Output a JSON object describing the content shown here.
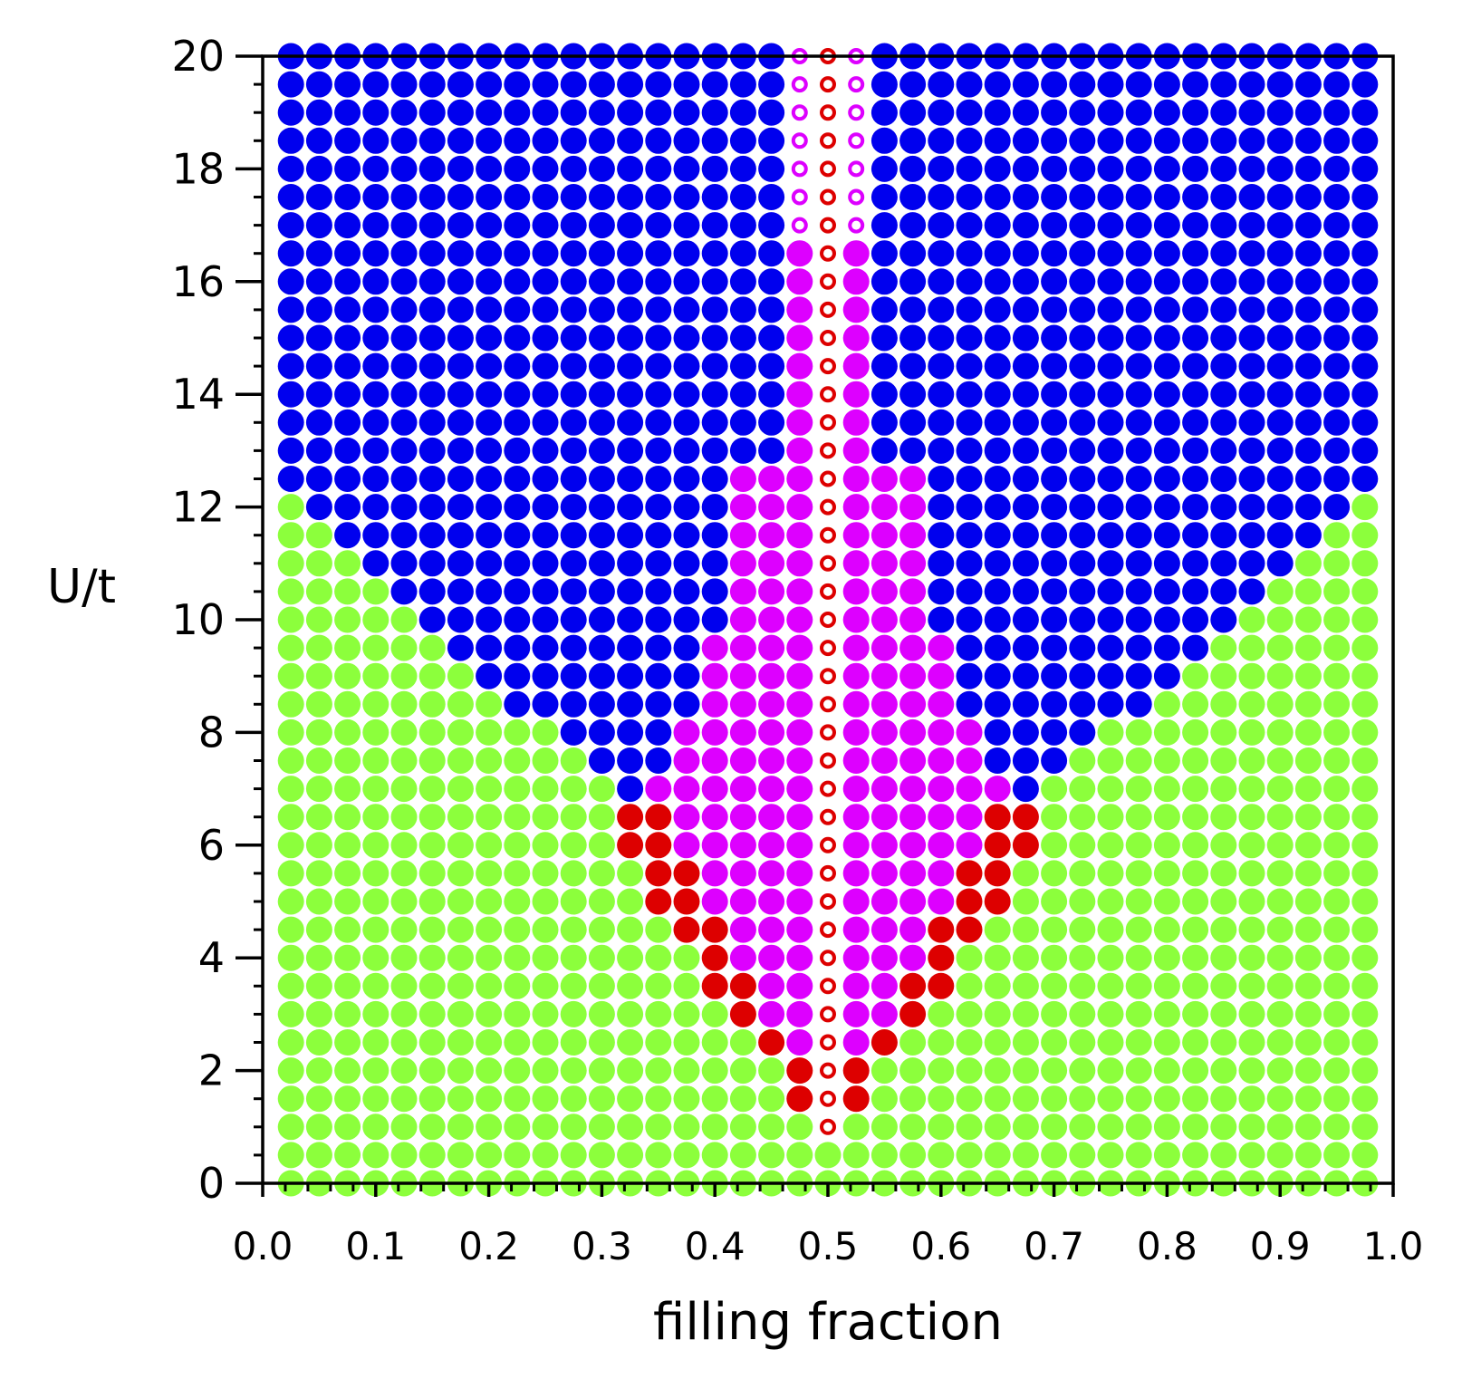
{
  "chart_data": {
    "type": "scatter",
    "title": "",
    "xlabel": "filling fraction",
    "ylabel": "U/t",
    "xlim": [
      0.0,
      1.0
    ],
    "ylim": [
      0,
      20
    ],
    "x_ticks": [
      "0.0",
      "0.1",
      "0.2",
      "0.3",
      "0.4",
      "0.5",
      "0.6",
      "0.7",
      "0.8",
      "0.9",
      "1.0"
    ],
    "y_ticks": [
      "0",
      "2",
      "4",
      "6",
      "8",
      "10",
      "12",
      "14",
      "16",
      "18",
      "20"
    ],
    "grid": false,
    "legend": "none",
    "grid_x": {
      "start": 0.025,
      "step": 0.025,
      "count": 39
    },
    "grid_y": {
      "start": 0,
      "step": 0.5,
      "count": 41
    },
    "colors": {
      "green": "#8cff3c",
      "blue": "#0000ee",
      "magenta": "#dd00ff",
      "red": "#dd0000",
      "open_red": "#dd0000",
      "open_magenta": "#dd00ff"
    },
    "phase_notes": {
      "blue_lower_boundary_U": [
        12.5,
        12,
        11.5,
        11,
        10.5,
        10,
        9.5,
        9,
        8.5,
        8.5,
        8,
        7.5,
        7,
        7
      ],
      "red_filled_points": [
        [
          0.325,
          6.5
        ],
        [
          0.35,
          6.5
        ],
        [
          0.325,
          6
        ],
        [
          0.35,
          6
        ],
        [
          0.35,
          5.5
        ],
        [
          0.375,
          5.5
        ],
        [
          0.35,
          5
        ],
        [
          0.375,
          5
        ],
        [
          0.375,
          4.5
        ],
        [
          0.4,
          4.5
        ],
        [
          0.4,
          4
        ],
        [
          0.4,
          3.5
        ],
        [
          0.425,
          3.5
        ],
        [
          0.425,
          3
        ],
        [
          0.45,
          2.5
        ],
        [
          0.475,
          2
        ],
        [
          0.475,
          1.5
        ],
        [
          0.525,
          2
        ],
        [
          0.525,
          1.5
        ],
        [
          0.55,
          2.5
        ],
        [
          0.575,
          3
        ],
        [
          0.575,
          3.5
        ],
        [
          0.6,
          3.5
        ],
        [
          0.6,
          4
        ],
        [
          0.6,
          4.5
        ],
        [
          0.625,
          4.5
        ],
        [
          0.625,
          5
        ],
        [
          0.65,
          5
        ],
        [
          0.625,
          5.5
        ],
        [
          0.65,
          5.5
        ],
        [
          0.65,
          6
        ],
        [
          0.675,
          6
        ],
        [
          0.65,
          6.5
        ],
        [
          0.675,
          6.5
        ]
      ],
      "open_red_column": {
        "x": 0.5,
        "U_from": 1,
        "U_to": 20
      },
      "open_magenta_columns": {
        "x": [
          0.475,
          0.525
        ],
        "U_from": 17,
        "U_to": 20
      }
    }
  }
}
